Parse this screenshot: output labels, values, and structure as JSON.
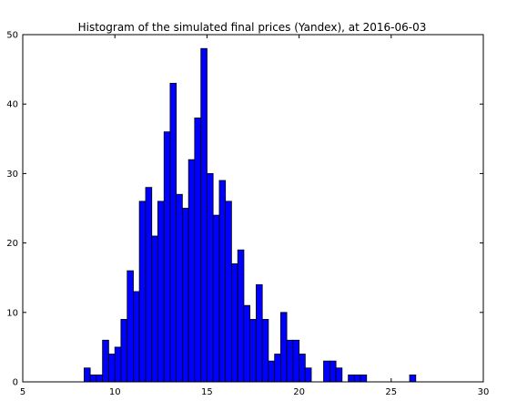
{
  "chart_data": {
    "type": "bar",
    "title": "Histogram of the simulated final prices (Yandex), at 2016-06-03",
    "xlabel": "",
    "ylabel": "",
    "xlim": [
      5,
      30
    ],
    "ylim": [
      0,
      50
    ],
    "xticks": [
      5,
      10,
      15,
      20,
      25,
      30
    ],
    "yticks": [
      0,
      10,
      20,
      30,
      40,
      50
    ],
    "grid": false,
    "bar_color": "#0000ff",
    "edge_color": "#000000",
    "bin_width": 0.3333,
    "bins_start": [
      8.33,
      8.67,
      9.0,
      9.33,
      9.67,
      10.0,
      10.33,
      10.67,
      11.0,
      11.33,
      11.67,
      12.0,
      12.33,
      12.67,
      13.0,
      13.33,
      13.67,
      14.0,
      14.33,
      14.67,
      15.0,
      15.33,
      15.67,
      16.0,
      16.33,
      16.67,
      17.0,
      17.33,
      17.67,
      18.0,
      18.33,
      18.67,
      19.0,
      19.33,
      19.67,
      20.0,
      20.33,
      21.33,
      21.67,
      22.0,
      22.67,
      23.0,
      23.33,
      26.0
    ],
    "values": [
      2,
      1,
      1,
      6,
      4,
      5,
      9,
      16,
      13,
      26,
      28,
      21,
      26,
      36,
      43,
      27,
      25,
      32,
      38,
      48,
      30,
      24,
      29,
      26,
      17,
      19,
      11,
      9,
      14,
      9,
      3,
      4,
      10,
      6,
      6,
      4,
      2,
      3,
      3,
      2,
      1,
      1,
      1,
      1
    ]
  }
}
